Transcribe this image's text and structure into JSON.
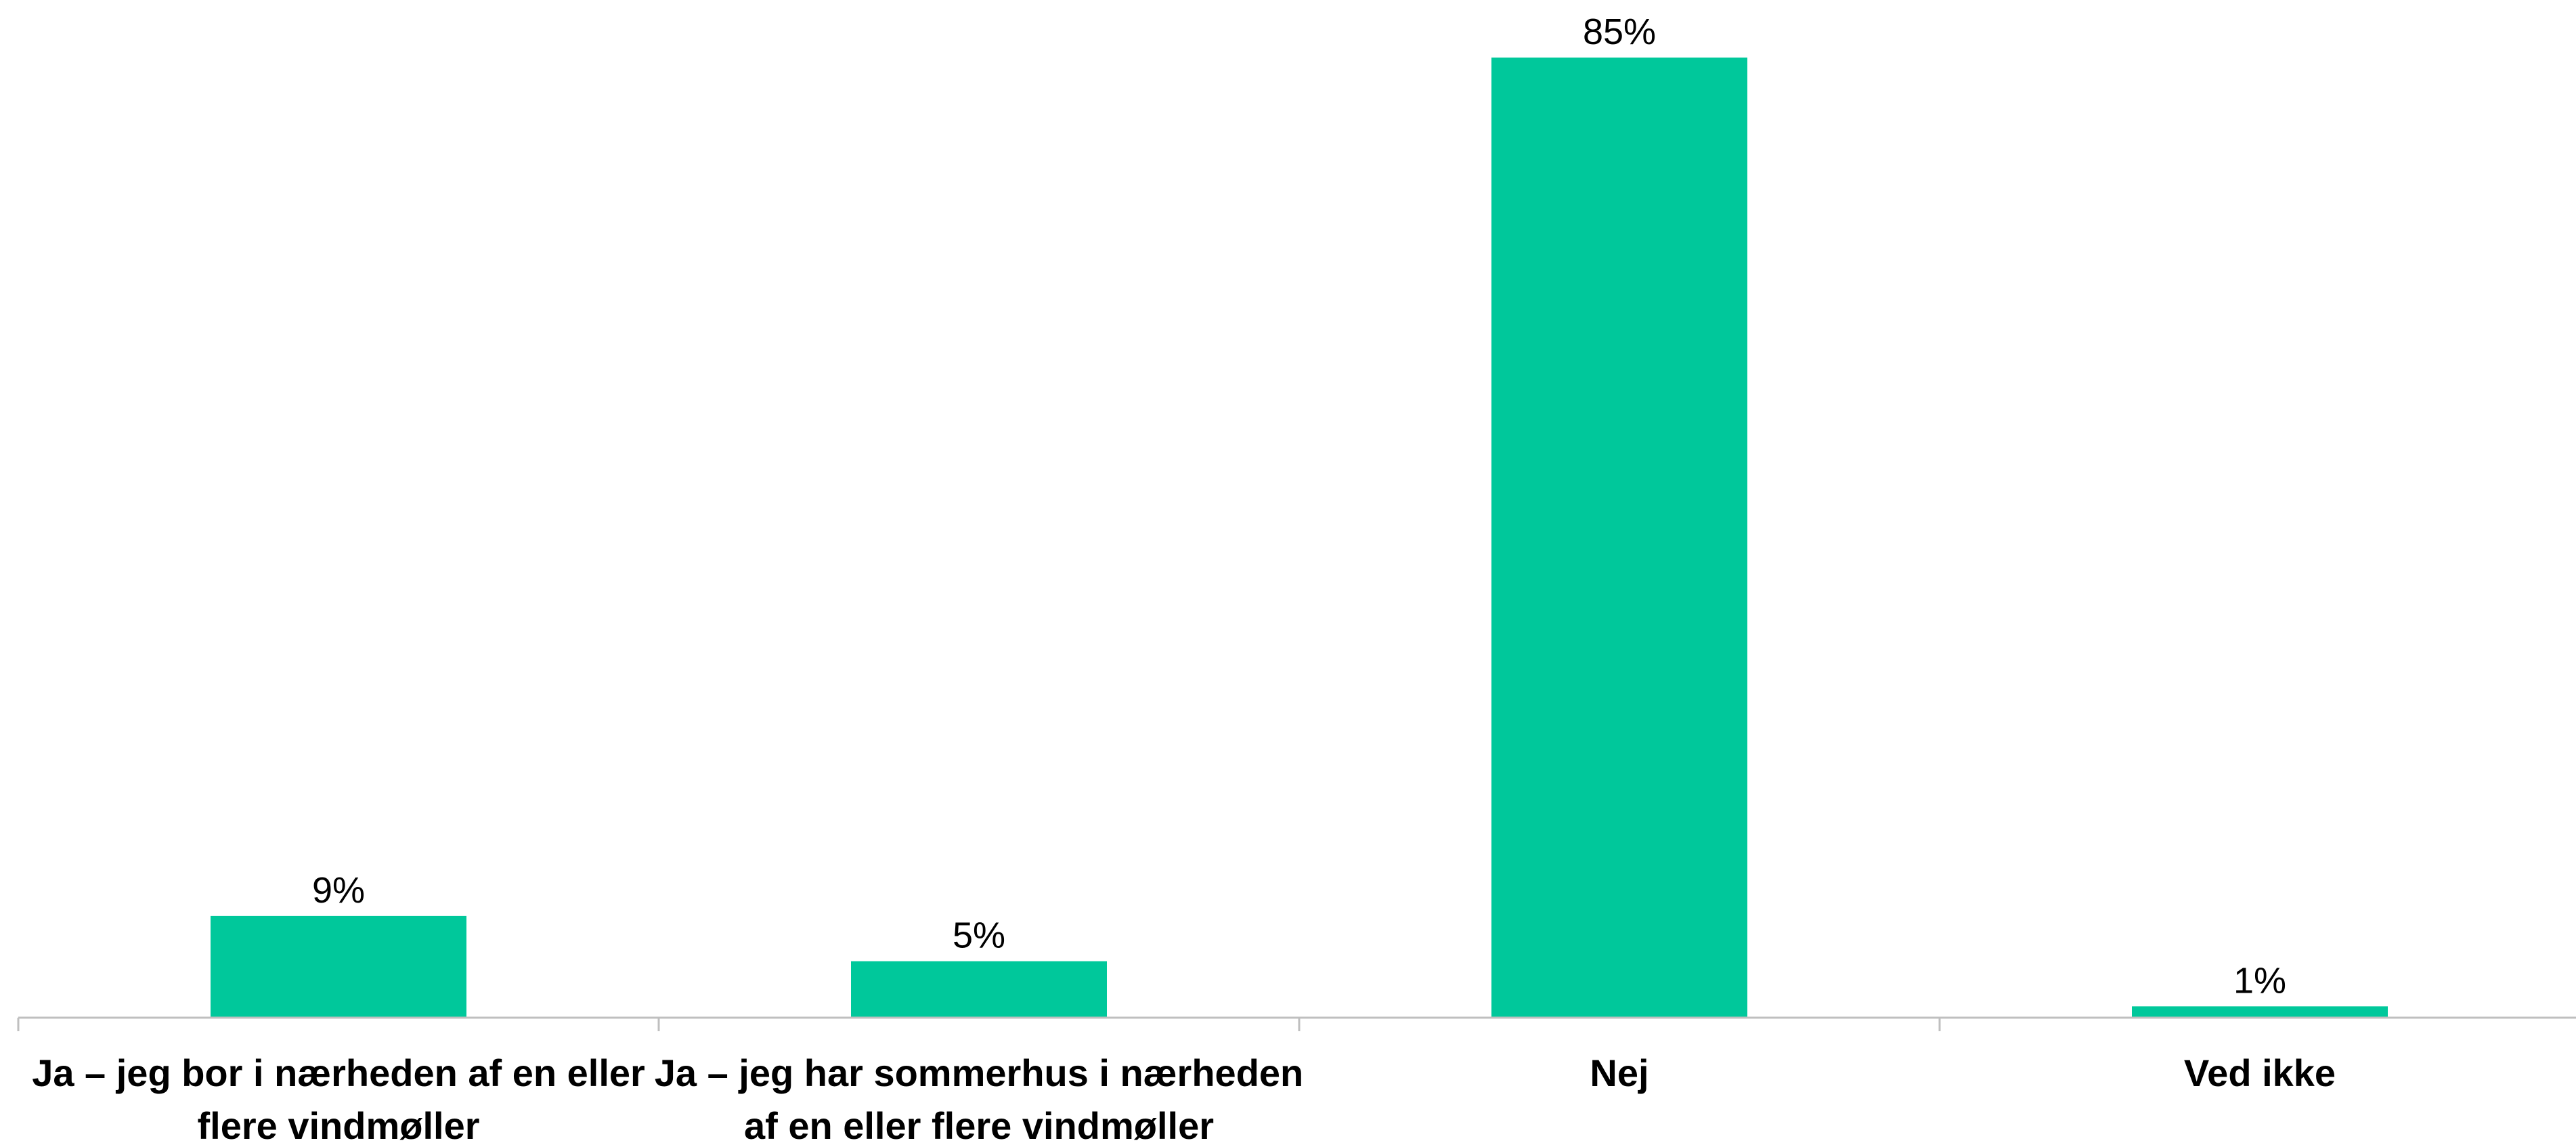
{
  "chart_data": {
    "type": "bar",
    "categories": [
      [
        "Ja – jeg bor i nærheden af en eller",
        "flere vindmøller"
      ],
      [
        "Ja – jeg har sommerhus i nærheden",
        "af en eller flere vindmøller"
      ],
      [
        "Nej"
      ],
      [
        "Ved ikke"
      ]
    ],
    "values": [
      9,
      5,
      85,
      1
    ],
    "value_labels": [
      "9%",
      "5%",
      "85%",
      "1%"
    ],
    "title": "",
    "xlabel": "",
    "ylabel": "",
    "ylim": [
      0,
      85
    ],
    "grid": false,
    "legend": "none",
    "bar_color": "#00C89B",
    "axis_color": "#BFBFBF"
  }
}
